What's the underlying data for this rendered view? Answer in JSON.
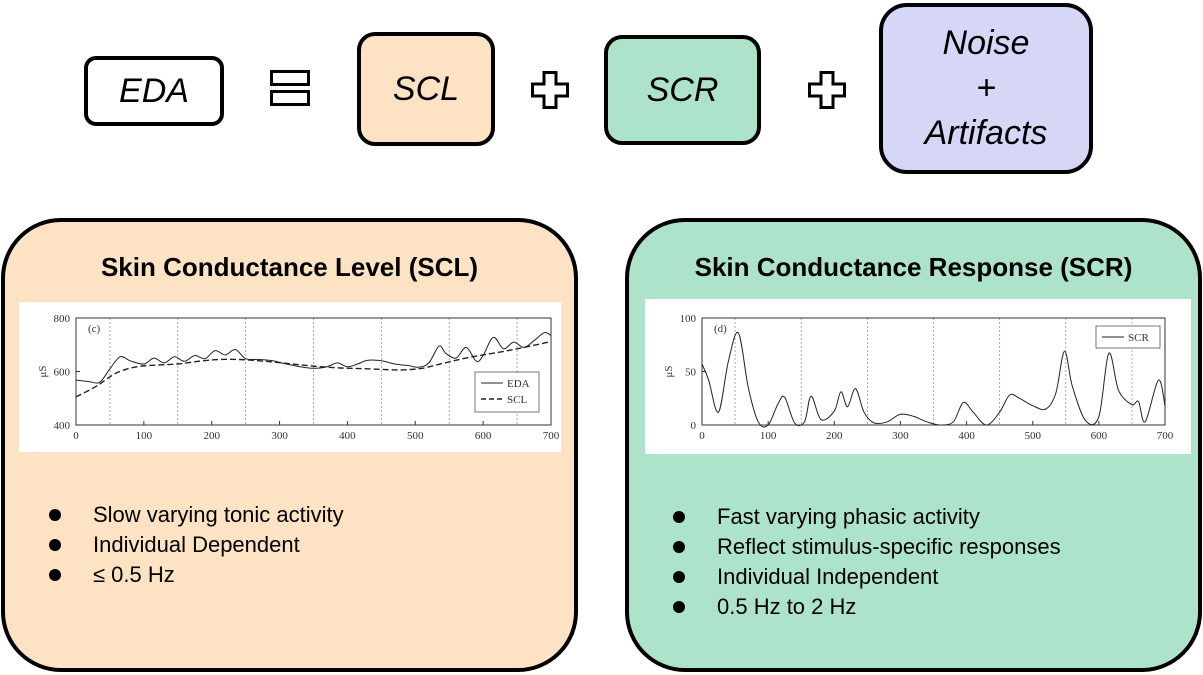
{
  "equation": {
    "eda": "EDA",
    "scl": "SCL",
    "scr": "SCR",
    "noise_lines": [
      "Noise",
      "+",
      "Artifacts"
    ]
  },
  "scl_panel": {
    "title": "Skin Conductance Level (SCL)",
    "bullets": [
      "Slow varying tonic activity",
      "Individual Dependent",
      "≤ 0.5 Hz"
    ],
    "background": "#fde3c4"
  },
  "scr_panel": {
    "title": "Skin Conductance Response (SCR)",
    "bullets": [
      "Fast varying phasic activity",
      "Reflect stimulus-specific responses",
      "Individual Independent",
      "0.5 Hz to 2 Hz"
    ],
    "background": "#ade3cb"
  },
  "noise_background": "#d6d6f6",
  "chart_data": [
    {
      "type": "line",
      "panel_label": "(c)",
      "ylabel": "μS",
      "xlim": [
        0,
        700
      ],
      "ylim": [
        400,
        800
      ],
      "xticks": [
        0,
        100,
        200,
        300,
        400,
        500,
        600,
        700
      ],
      "yticks": [
        400,
        600,
        800
      ],
      "legend": "bottom-right",
      "series": [
        {
          "name": "EDA",
          "style": "solid",
          "x": [
            0,
            20,
            35,
            50,
            65,
            80,
            100,
            115,
            130,
            145,
            160,
            175,
            190,
            205,
            220,
            235,
            250,
            270,
            290,
            310,
            330,
            350,
            370,
            385,
            400,
            415,
            430,
            450,
            470,
            490,
            505,
            520,
            535,
            545,
            560,
            575,
            590,
            600,
            615,
            630,
            645,
            660,
            675,
            690,
            700
          ],
          "y": [
            568,
            562,
            560,
            610,
            655,
            640,
            628,
            650,
            632,
            655,
            638,
            660,
            648,
            678,
            662,
            682,
            648,
            645,
            640,
            628,
            618,
            612,
            618,
            632,
            618,
            628,
            642,
            640,
            628,
            622,
            616,
            632,
            695,
            668,
            650,
            690,
            638,
            660,
            728,
            685,
            710,
            690,
            715,
            745,
            735
          ]
        },
        {
          "name": "SCL",
          "style": "dashed",
          "x": [
            0,
            30,
            60,
            90,
            120,
            150,
            180,
            210,
            240,
            270,
            300,
            330,
            360,
            390,
            420,
            450,
            480,
            510,
            540,
            570,
            600,
            630,
            660,
            700
          ],
          "y": [
            505,
            545,
            595,
            618,
            624,
            628,
            638,
            645,
            645,
            640,
            633,
            625,
            618,
            613,
            611,
            608,
            606,
            612,
            630,
            648,
            662,
            675,
            690,
            712
          ]
        }
      ]
    },
    {
      "type": "line",
      "panel_label": "(d)",
      "ylabel": "μS",
      "xlim": [
        0,
        700
      ],
      "ylim": [
        0,
        100
      ],
      "xticks": [
        0,
        100,
        200,
        300,
        400,
        500,
        600,
        700
      ],
      "yticks": [
        0,
        50,
        100
      ],
      "legend": "top-right",
      "series": [
        {
          "name": "SCR",
          "style": "solid",
          "x": [
            0,
            10,
            25,
            40,
            55,
            70,
            85,
            100,
            115,
            125,
            140,
            155,
            165,
            180,
            200,
            210,
            220,
            232,
            245,
            260,
            280,
            300,
            320,
            340,
            360,
            380,
            395,
            410,
            430,
            450,
            465,
            480,
            500,
            520,
            535,
            548,
            560,
            580,
            600,
            615,
            630,
            650,
            660,
            670,
            690,
            700
          ],
          "y": [
            57,
            42,
            12,
            60,
            86,
            35,
            3,
            0,
            20,
            26,
            2,
            3,
            27,
            5,
            13,
            31,
            17,
            34,
            12,
            2,
            3,
            10,
            8,
            3,
            0,
            3,
            21,
            12,
            0,
            12,
            28,
            25,
            18,
            15,
            30,
            69,
            36,
            4,
            8,
            67,
            32,
            19,
            22,
            3,
            42,
            18
          ]
        }
      ]
    }
  ]
}
